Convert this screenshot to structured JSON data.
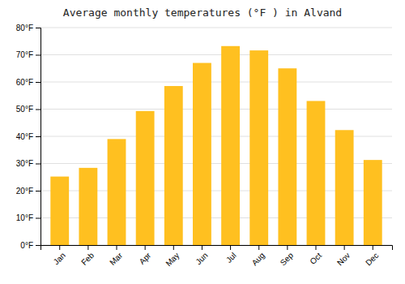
{
  "chart_data": {
    "type": "bar",
    "title": "Average monthly temperatures (°F ) in Alvand",
    "categories": [
      "Jan",
      "Feb",
      "Mar",
      "Apr",
      "May",
      "Jun",
      "Jul",
      "Aug",
      "Sep",
      "Oct",
      "Nov",
      "Dec"
    ],
    "values": [
      25.2,
      28.4,
      39.0,
      49.3,
      58.5,
      67.0,
      73.2,
      71.6,
      65.0,
      53.0,
      42.3,
      31.3
    ],
    "color": "#FFC020",
    "ylim": [
      0,
      80
    ],
    "yticks": [
      {
        "value": 0,
        "label": "0°F"
      },
      {
        "value": 10,
        "label": "10°F"
      },
      {
        "value": 20,
        "label": "20°F"
      },
      {
        "value": 30,
        "label": "30°F"
      },
      {
        "value": 40,
        "label": "40°F"
      },
      {
        "value": 50,
        "label": "50°F"
      },
      {
        "value": 60,
        "label": "60°F"
      },
      {
        "value": 70,
        "label": "70°F"
      },
      {
        "value": 80,
        "label": "80°F"
      }
    ],
    "grid": true
  }
}
